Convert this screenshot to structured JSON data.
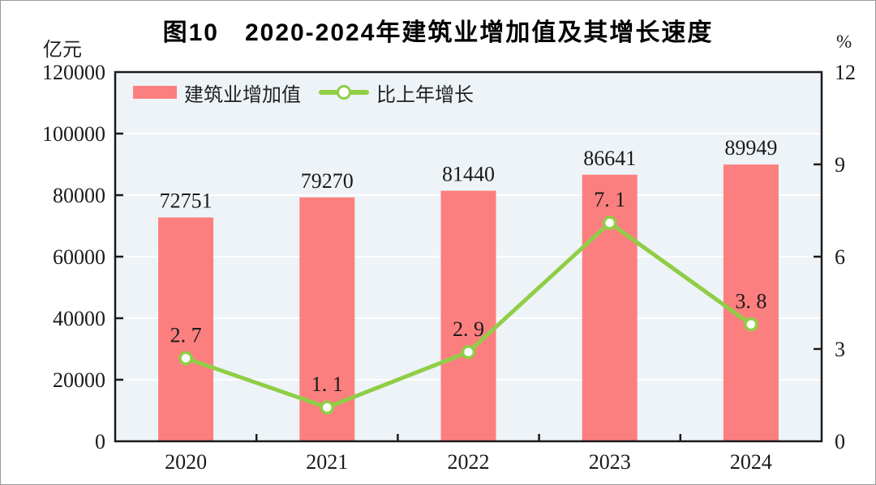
{
  "page": {
    "title": "图10　2020-2024年建筑业增加值及其增长速度",
    "left_axis_unit": "亿元",
    "right_axis_unit": "%"
  },
  "legend": {
    "bar_label": "建筑业增加值",
    "line_label": "比上年增长"
  },
  "colors": {
    "bar": "#FC7F7F",
    "line": "#8FCE46",
    "marker_fill": "#FFFFFF",
    "plot_background": "#EDF3F7",
    "gridline": "#FFFFFF",
    "frame": "#1A1A1A",
    "label_text": "#1A1A1A"
  },
  "chart_data": {
    "type": "combo-bar-line",
    "title": "图10　2020-2024年建筑业增加值及其增长速度",
    "categories": [
      "2020",
      "2021",
      "2022",
      "2023",
      "2024"
    ],
    "series": [
      {
        "name": "建筑业增加值",
        "type": "bar",
        "axis": "left",
        "unit": "亿元",
        "values": [
          72751,
          79270,
          81440,
          86641,
          89949
        ],
        "value_labels": [
          "72751",
          "79270",
          "81440",
          "86641",
          "89949"
        ]
      },
      {
        "name": "比上年增长",
        "type": "line",
        "axis": "right",
        "unit": "%",
        "values": [
          2.7,
          1.1,
          2.9,
          7.1,
          3.8
        ],
        "value_labels": [
          "2. 7",
          "1. 1",
          "2. 9",
          "7. 1",
          "3. 8"
        ]
      }
    ],
    "left_axis": {
      "label": "亿元",
      "min": 0,
      "max": 120000,
      "tick_interval": 20000,
      "ticks": [
        0,
        20000,
        40000,
        60000,
        80000,
        100000,
        120000
      ]
    },
    "right_axis": {
      "label": "%",
      "min": 0,
      "max": 12,
      "tick_interval": 3,
      "ticks": [
        0,
        3,
        6,
        9,
        12
      ]
    },
    "grid": "horizontal-white",
    "legend_position": "top-left-inside"
  }
}
